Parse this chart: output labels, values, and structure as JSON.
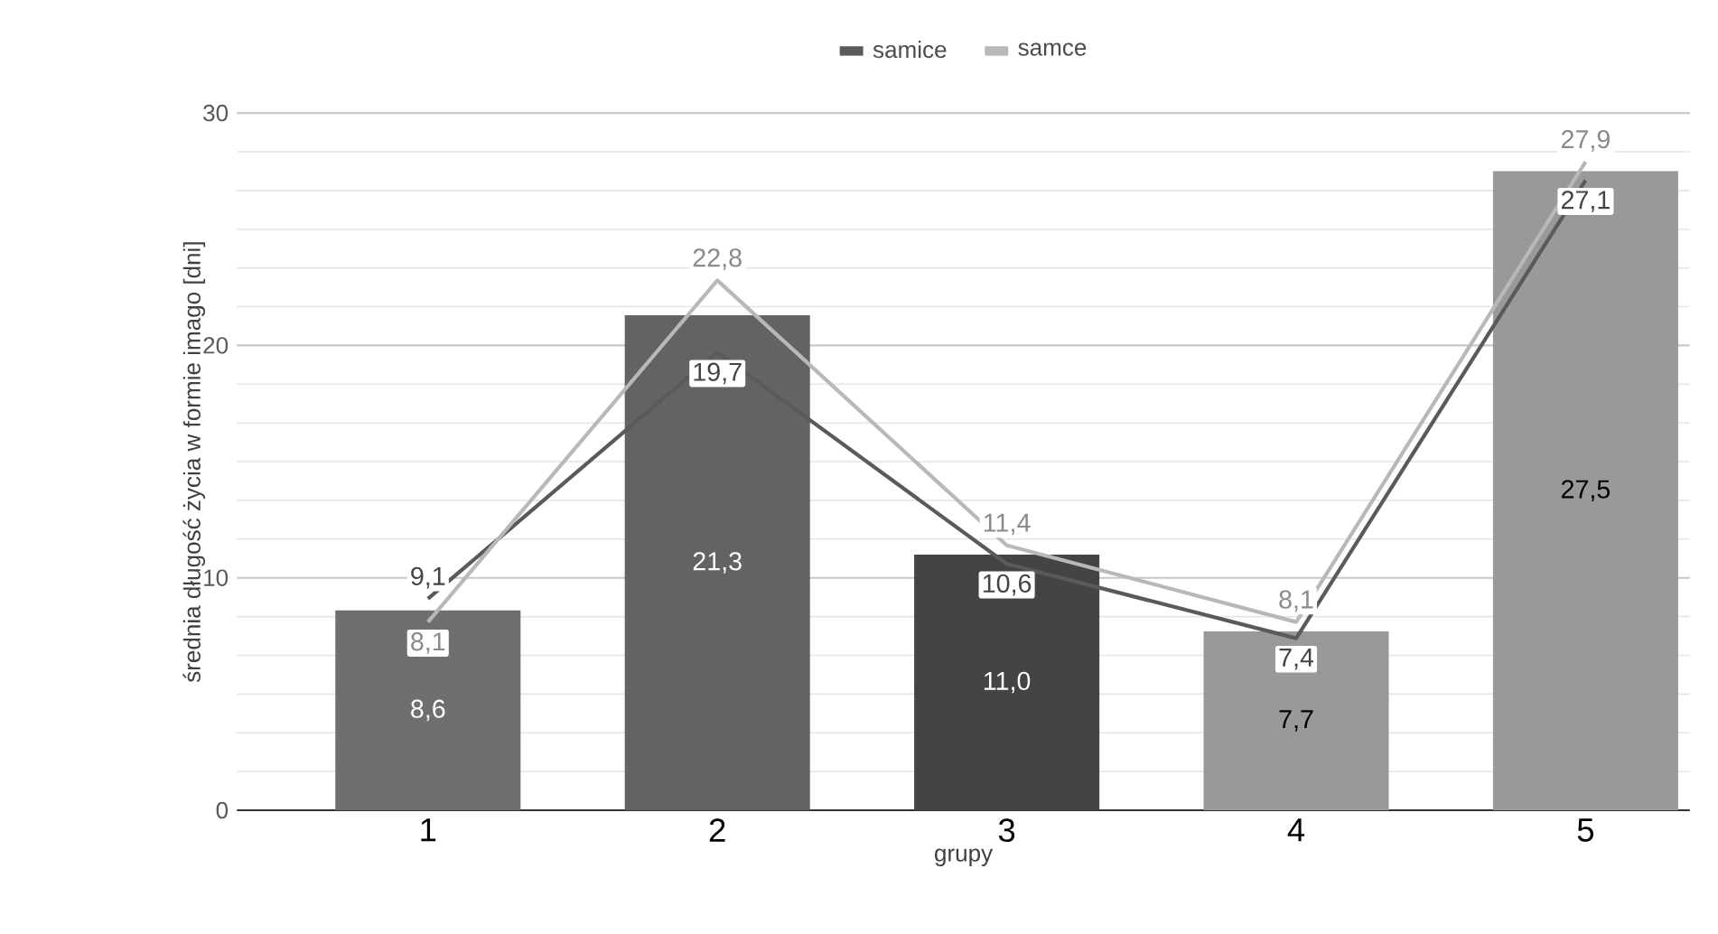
{
  "chart_data": {
    "type": "bar",
    "xlabel": "grupy",
    "ylabel": "średnia długość życia w formie imago [dni]",
    "categories": [
      "1",
      "2",
      "3",
      "4",
      "5"
    ],
    "series": [
      {
        "colors": [
          "#6f6f6f",
          "#636363",
          "#444444",
          "#999999",
          "#999999"
        ],
        "values": [
          8.6,
          21.3,
          11.0,
          7.7,
          27.5
        ],
        "value_labels": [
          "8,6",
          "21,3",
          "11,0",
          "7,7",
          "27,5"
        ]
      },
      {
        "type": "line",
        "name": "samice",
        "color": "#5a5a5a",
        "values": [
          9.1,
          19.7,
          10.6,
          7.4,
          27.1
        ],
        "value_labels": [
          "9,1",
          "19,7",
          "10,6",
          "7,4",
          "27,1"
        ]
      },
      {
        "type": "line",
        "name": "samce",
        "color": "#b8b8b8",
        "values": [
          8.1,
          22.8,
          11.4,
          8.1,
          27.9
        ],
        "value_labels": [
          "8,1",
          "22,8",
          "11,4",
          "8,1",
          "27,9"
        ]
      }
    ],
    "ylim": [
      0,
      30
    ],
    "yticks": [
      0,
      10,
      20,
      30
    ],
    "grid": "y",
    "legend": "top",
    "marker": "none",
    "line_style": "solid"
  }
}
